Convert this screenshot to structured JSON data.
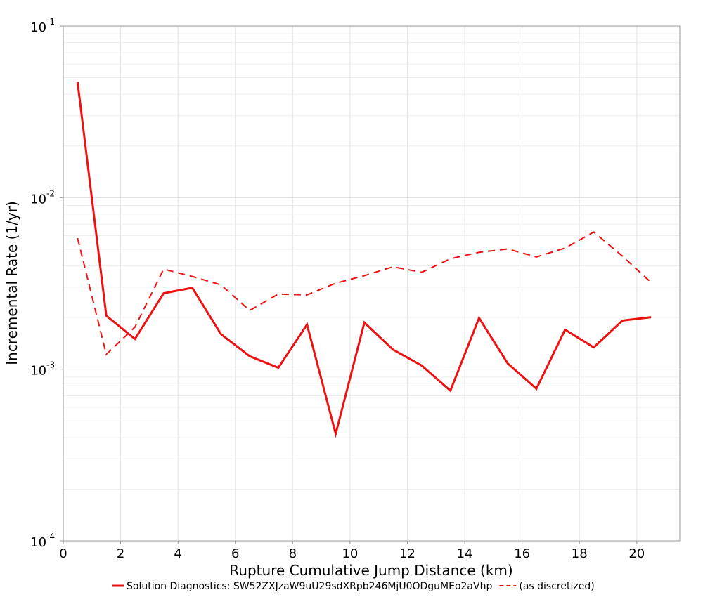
{
  "chart_data": {
    "type": "line",
    "xlabel": "Rupture Cumulative Jump Distance (km)",
    "ylabel": "Incremental Rate (1/yr)",
    "xlim": [
      0,
      21.5
    ],
    "ylim": [
      0.0001,
      0.1
    ],
    "yscale": "log",
    "grid": true,
    "legend_position": "bottom",
    "x_ticks": [
      0,
      2,
      4,
      6,
      8,
      10,
      12,
      14,
      16,
      18,
      20
    ],
    "y_ticks": [
      {
        "value": 0.1,
        "base": "10",
        "exp": "-1"
      },
      {
        "value": 0.01,
        "base": "10",
        "exp": "-2"
      },
      {
        "value": 0.001,
        "base": "10",
        "exp": "-3"
      },
      {
        "value": 0.0001,
        "base": "10",
        "exp": "-4"
      }
    ],
    "x": [
      0.5,
      1.5,
      2.5,
      3.5,
      4.5,
      5.5,
      6.5,
      7.5,
      8.5,
      9.5,
      10.5,
      11.5,
      12.5,
      13.5,
      14.5,
      15.5,
      16.5,
      17.5,
      18.5,
      19.5,
      20.5
    ],
    "series": [
      {
        "name": "Solution Diagnostics: SW52ZXJzaW9uU29sdXRpb246MjU0ODguMEo2aVhp",
        "color": "#ee1111",
        "dash": "solid",
        "values": [
          0.047,
          0.00205,
          0.0015,
          0.00277,
          0.00298,
          0.0016,
          0.00119,
          0.00102,
          0.00182,
          0.00042,
          0.00187,
          0.0013,
          0.00105,
          0.00075,
          0.00199,
          0.00108,
          0.00077,
          0.0017,
          0.00134,
          0.00192,
          0.00201
        ]
      },
      {
        "name": "(as discretized)",
        "color": "#ee1111",
        "dash": "dashed",
        "values": [
          0.0058,
          0.00122,
          0.00176,
          0.00383,
          0.00347,
          0.0031,
          0.0022,
          0.00274,
          0.00271,
          0.00317,
          0.00351,
          0.00395,
          0.00367,
          0.0044,
          0.0048,
          0.00502,
          0.00451,
          0.00508,
          0.0063,
          0.00456,
          0.0032
        ]
      }
    ]
  }
}
